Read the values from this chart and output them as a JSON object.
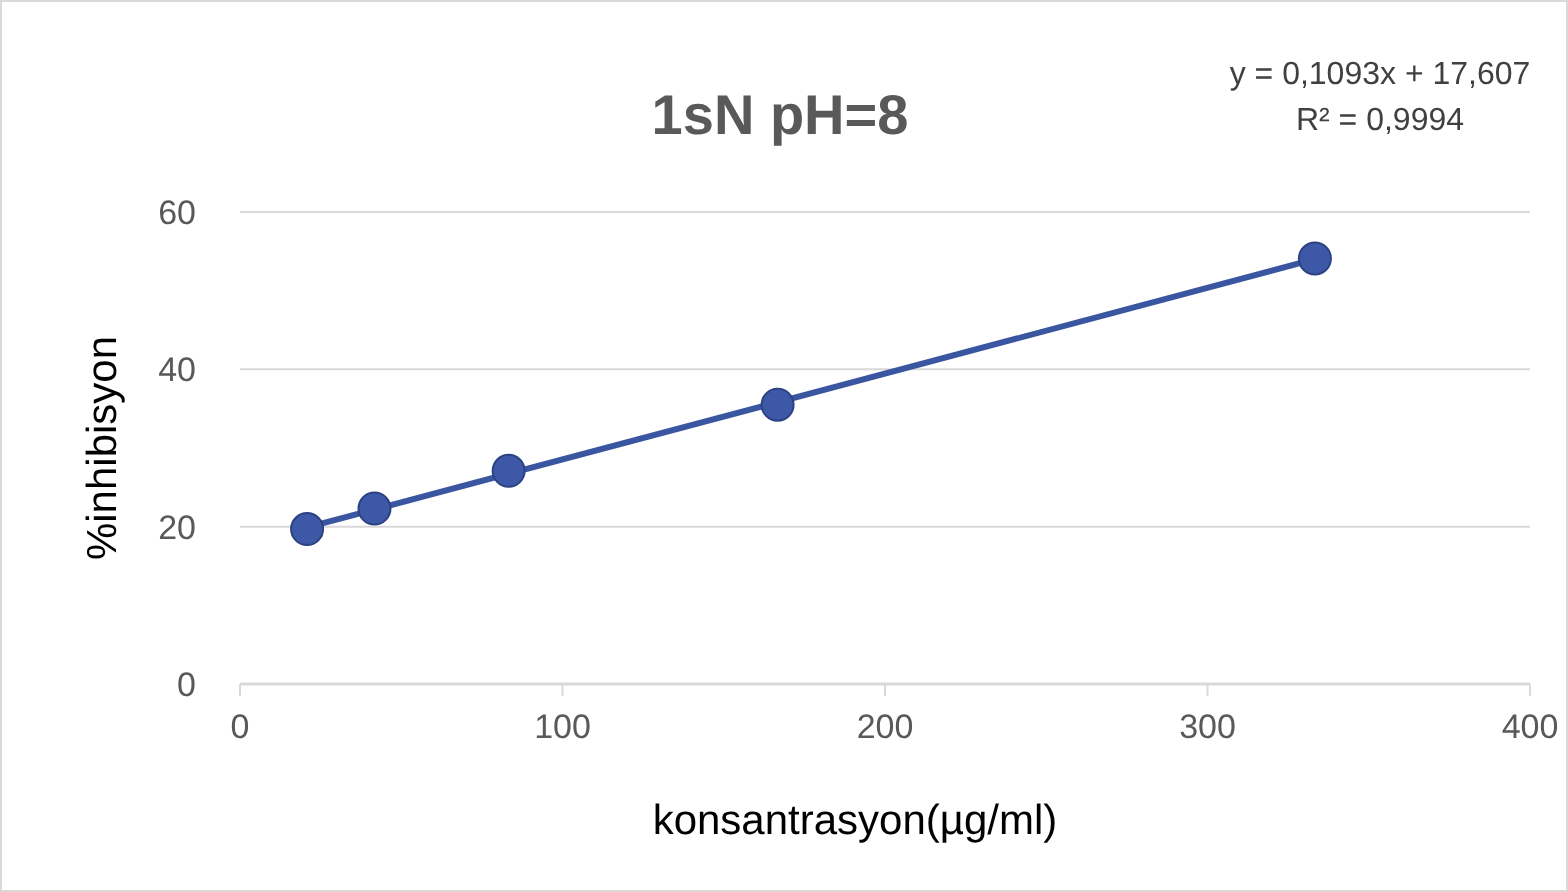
{
  "chart_data": {
    "type": "scatter",
    "title": "1sN pH=8",
    "xlabel": "konsantrasyon(µg/ml)",
    "ylabel": "%inhibisyon",
    "x": [
      20.8,
      41.7,
      83.3,
      166.7,
      333.3
    ],
    "series": [
      {
        "color": "#3d58a6",
        "values": [
          19.7,
          22.3,
          27.1,
          35.5,
          54.1
        ],
        "marker": "circle"
      },
      {
        "type": "line",
        "color": "#3a56a0",
        "x": [
          20.8,
          333.3
        ],
        "values": [
          19.9,
          54.0
        ],
        "marker": "none"
      }
    ],
    "xlim": [
      0,
      400
    ],
    "xticks": [
      0,
      100,
      200,
      300,
      400
    ],
    "ylim": [
      0,
      60
    ],
    "yticks": [
      0,
      20,
      40,
      60
    ],
    "grid": "y",
    "line_style": "solid",
    "annotations": [
      "y = 0,1093x + 17,607",
      "R² = 0,9994"
    ]
  }
}
